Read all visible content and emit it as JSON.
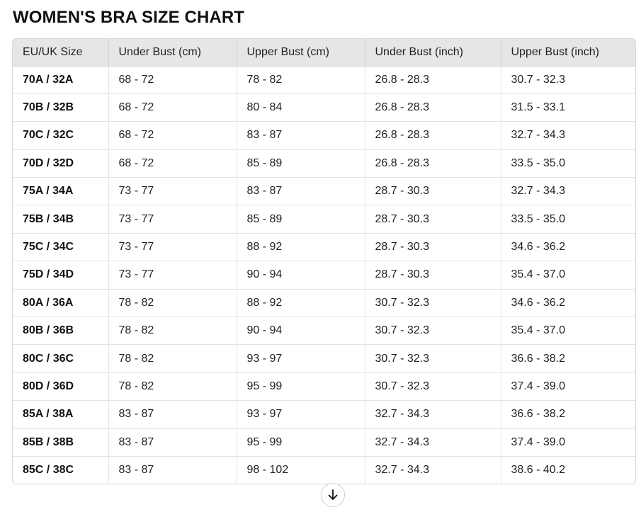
{
  "page": {
    "title": "WOMEN'S BRA SIZE CHART"
  },
  "table": {
    "headers": [
      "EU/UK Size",
      "Under Bust (cm)",
      "Upper Bust (cm)",
      "Under Bust (inch)",
      "Upper Bust (inch)"
    ],
    "rows": [
      [
        "70A / 32A",
        "68 - 72",
        "78 - 82",
        "26.8 - 28.3",
        "30.7 - 32.3"
      ],
      [
        "70B / 32B",
        "68 - 72",
        "80 - 84",
        "26.8 - 28.3",
        "31.5 - 33.1"
      ],
      [
        "70C / 32C",
        "68 - 72",
        "83 - 87",
        "26.8 - 28.3",
        "32.7 - 34.3"
      ],
      [
        "70D / 32D",
        "68 - 72",
        "85 - 89",
        "26.8 - 28.3",
        "33.5 - 35.0"
      ],
      [
        "75A / 34A",
        "73 - 77",
        "83 - 87",
        "28.7 - 30.3",
        "32.7 - 34.3"
      ],
      [
        "75B / 34B",
        "73 - 77",
        "85 - 89",
        "28.7 - 30.3",
        "33.5 - 35.0"
      ],
      [
        "75C / 34C",
        "73 - 77",
        "88 - 92",
        "28.7 - 30.3",
        "34.6 - 36.2"
      ],
      [
        "75D / 34D",
        "73 - 77",
        "90 - 94",
        "28.7 - 30.3",
        "35.4 - 37.0"
      ],
      [
        "80A / 36A",
        "78 - 82",
        "88 - 92",
        "30.7 - 32.3",
        "34.6 - 36.2"
      ],
      [
        "80B / 36B",
        "78 - 82",
        "90 - 94",
        "30.7 - 32.3",
        "35.4 - 37.0"
      ],
      [
        "80C / 36C",
        "78 - 82",
        "93 - 97",
        "30.7 - 32.3",
        "36.6 - 38.2"
      ],
      [
        "80D / 36D",
        "78 - 82",
        "95 - 99",
        "30.7 - 32.3",
        "37.4 - 39.0"
      ],
      [
        "85A / 38A",
        "83 - 87",
        "93 - 97",
        "32.7 - 34.3",
        "36.6 - 38.2"
      ],
      [
        "85B / 38B",
        "83 - 87",
        "95 - 99",
        "32.7 - 34.3",
        "37.4 - 39.0"
      ],
      [
        "85C / 38C",
        "83 - 87",
        "98 - 102",
        "32.7 - 34.3",
        "38.6 - 40.2"
      ]
    ]
  },
  "controls": {
    "scroll_down_icon": "arrow-down-icon"
  },
  "colors": {
    "header_bg": "#e6e6e6",
    "border": "#d9d9d9",
    "text": "#222222"
  }
}
